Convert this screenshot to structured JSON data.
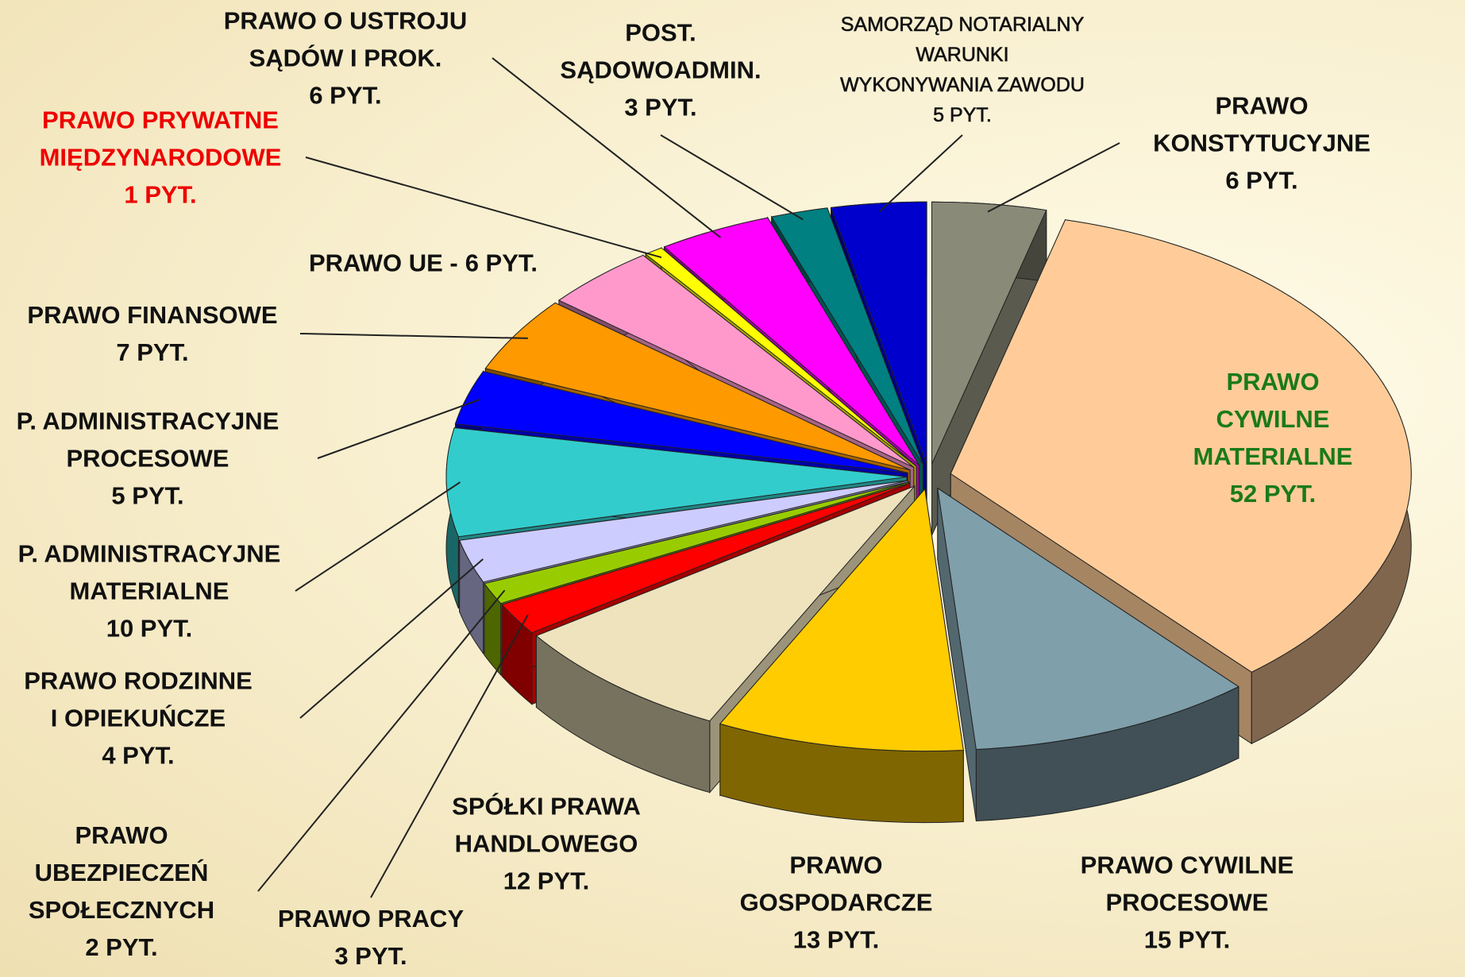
{
  "chart_data": {
    "type": "pie3d",
    "categories": [
      "PRAWO\nKONSTYTUCYJNE",
      "PRAWO CYWILNE\nMATERIALNE",
      "PRAWO CYWILNE\nPROCESOWE",
      "PRAWO\nGOSPODARCZE",
      "SPÓŁKI PRAWA\nHANDLOWEGO",
      "PRAWO PRACY",
      "PRAWO\nUBEZPIECZEŃ\nSPOŁECZNYCH",
      "PRAWO RODZINNE\nI OPIEKUŃCZE",
      "P. ADMINISTRACYJNE\nMATERIALNE",
      "P. ADMINISTRACYJNE\nPROCESOWE",
      "PRAWO FINANSOWE",
      "PRAWO UE -",
      "PRAWO  PRYWATNE\nMIĘDZYNARODOWE",
      "PRAWO O USTROJU\nSĄDÓW I PROK.",
      "POST.\nSĄDOWOADMIN.",
      "SAMORZĄD NOTARIALNY\nWARUNKI\nWYKONYWANIA ZAWODU"
    ],
    "values": [
      6,
      52,
      15,
      13,
      12,
      3,
      2,
      4,
      10,
      5,
      7,
      6,
      1,
      6,
      3,
      5
    ],
    "value_labels": [
      "6 PYT.",
      "52 PYT.",
      "15 PYT.",
      "13 PYT.",
      "12 PYT.",
      "3 PYT.",
      "2 PYT.",
      "4 PYT.",
      "10 PYT.",
      "5 PYT.",
      "7 PYT.",
      "6 PYT.",
      "1 PYT.",
      "6 PYT.",
      "3 PYT.",
      "5 PYT."
    ],
    "colors": [
      "#8a8a78",
      "#ffcc99",
      "#7f9fab",
      "#ffcc00",
      "#eee3bc",
      "#ff0000",
      "#99cc00",
      "#ccccff",
      "#33cccc",
      "#0000ff",
      "#ff9900",
      "#ff99cc",
      "#ffff00",
      "#ff00ff",
      "#008080",
      "#0000cc"
    ],
    "label_colors": [
      "#111111",
      "#1a7a1a",
      "#111111",
      "#111111",
      "#111111",
      "#111111",
      "#111111",
      "#111111",
      "#111111",
      "#111111",
      "#111111",
      "#111111",
      "#ee0000",
      "#111111",
      "#111111",
      "#111111"
    ]
  }
}
